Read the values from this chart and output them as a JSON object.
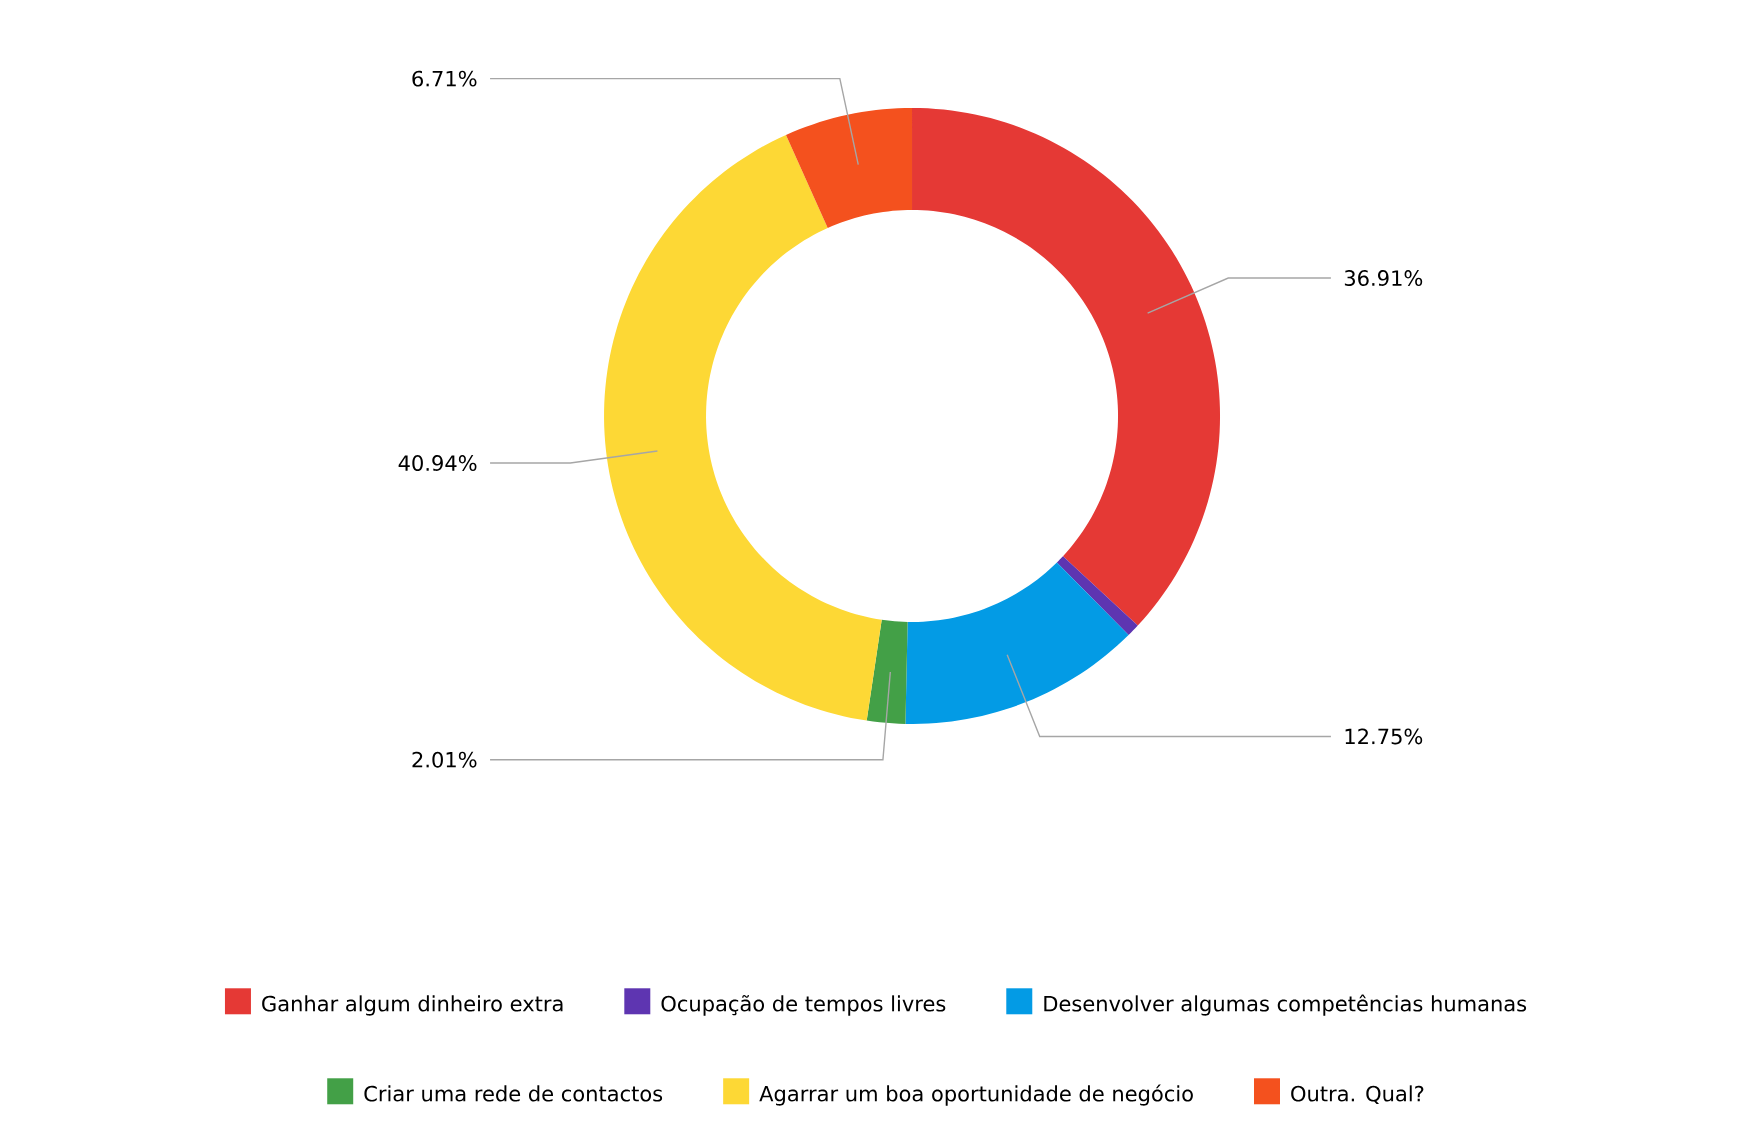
{
  "chart_data": {
    "type": "donut",
    "categories": [
      "Ganhar algum dinheiro extra",
      "Ocupação de tempos livres",
      "Desenvolver algumas competências humanas",
      "Criar uma rede de contactos",
      "Agarrar um boa oportunidade de negócio",
      "Outra. Qual?"
    ],
    "values": [
      36.91,
      0.68,
      12.75,
      2.01,
      40.94,
      6.71
    ],
    "colors": [
      "#e53935",
      "#5e35b1",
      "#039be5",
      "#43a047",
      "#fdd835",
      "#f4511e"
    ],
    "value_labels": [
      "36.91%",
      null,
      "12.75%",
      "2.01%",
      "40.94%",
      "6.71%"
    ],
    "legend": "bottom"
  }
}
